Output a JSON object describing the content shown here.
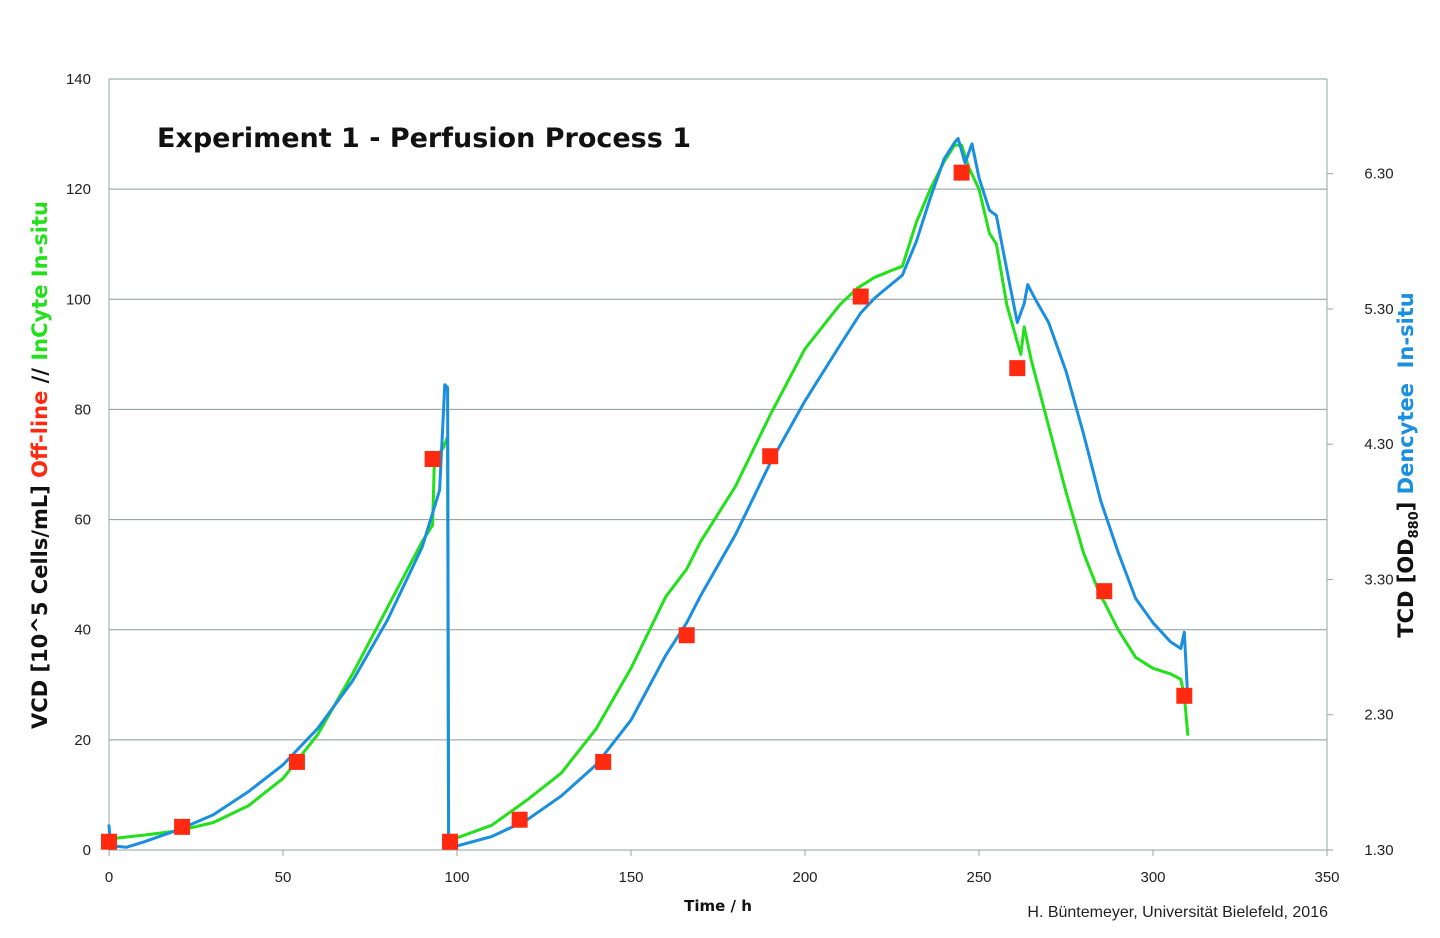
{
  "chart_data": {
    "type": "line",
    "title": "Experiment 1 - Perfusion Process 1",
    "xlabel": "Time / h",
    "ylabel": {
      "prefix": "VCD [10^5 Cells/mL] ",
      "offline": "Off-line",
      "separator": " // ",
      "incyte": "InCyte In-situ"
    },
    "y2label": {
      "prefix": "TCD [OD",
      "subscript": "880",
      "suffix": "] ",
      "dencytee": "Dencytee  In-situ"
    },
    "xlim": [
      0,
      350
    ],
    "ylim": [
      0,
      140
    ],
    "y2lim": [
      1.3,
      7.0
    ],
    "x_ticks": [
      "0",
      "50",
      "100",
      "150",
      "200",
      "250",
      "300",
      "350"
    ],
    "y_ticks": [
      "0",
      "20",
      "40",
      "60",
      "80",
      "100",
      "120",
      "140"
    ],
    "y2_ticks": [
      "1.30",
      "2.30",
      "3.30",
      "4.30",
      "5.30",
      "6.30"
    ],
    "grid": "horizontal",
    "credit": "H. Büntemeyer, Universität Bielefeld, 2016",
    "colors": {
      "incyte": "#22e01a",
      "dencytee": "#1a8fe0",
      "offline": "#ff2a10",
      "grid": "#8a9a9a",
      "axis": "#9aa5a5",
      "title": "#111111",
      "offline_label": "#ff2a10",
      "incyte_label": "#22e01a",
      "dencytee_label": "#1a8fe0"
    },
    "series": [
      {
        "name": "InCyte In-situ",
        "axis": "left",
        "x": [
          0,
          10,
          20,
          30,
          40,
          50,
          60,
          70,
          80,
          90,
          93,
          93.5,
          96,
          97.3,
          97.6,
          98,
          100,
          110,
          120,
          130,
          140,
          150,
          160,
          166,
          170,
          180,
          190,
          200,
          210,
          215,
          220,
          228,
          232,
          236,
          240,
          243,
          245,
          247,
          250,
          253,
          255,
          258,
          262,
          263,
          265,
          270,
          275,
          280,
          285,
          286,
          290,
          295,
          300,
          305,
          308,
          309,
          310
        ],
        "y": [
          2,
          2.7,
          3.5,
          5,
          8,
          13,
          21,
          32,
          44,
          56,
          59,
          71,
          73,
          75,
          1,
          1.5,
          2.2,
          4.5,
          9,
          14,
          22,
          33,
          46,
          51,
          56,
          66,
          79,
          91,
          99,
          102,
          104,
          106,
          114,
          120,
          125,
          128,
          128,
          124,
          120,
          112,
          110,
          99,
          90,
          95,
          89,
          77,
          65,
          54,
          46,
          45,
          40,
          35,
          33,
          32,
          31,
          28,
          21
        ]
      },
      {
        "name": "Dencytee  In-situ",
        "axis": "right",
        "x": [
          0,
          0.5,
          1,
          5,
          10,
          20,
          30,
          40,
          50,
          60,
          70,
          80,
          90,
          95,
          96.5,
          97.3,
          97.6,
          98.5,
          100,
          110,
          120,
          130,
          140,
          150,
          160,
          166,
          170,
          180,
          190,
          200,
          210,
          216,
          220,
          228,
          232,
          236,
          240,
          243,
          244,
          246,
          248,
          250,
          253,
          255,
          258,
          261,
          263,
          264,
          266,
          270,
          275,
          280,
          285,
          290,
          295,
          300,
          305,
          308,
          309,
          310
        ],
        "y": [
          1.48,
          1.31,
          1.33,
          1.32,
          1.36,
          1.45,
          1.56,
          1.73,
          1.93,
          2.2,
          2.55,
          3.0,
          3.54,
          3.96,
          4.74,
          4.72,
          1.34,
          1.32,
          1.33,
          1.4,
          1.52,
          1.7,
          1.93,
          2.26,
          2.74,
          2.98,
          3.18,
          3.63,
          4.16,
          4.62,
          5.03,
          5.27,
          5.38,
          5.55,
          5.8,
          6.12,
          6.41,
          6.53,
          6.56,
          6.38,
          6.52,
          6.27,
          6.03,
          5.99,
          5.59,
          5.2,
          5.34,
          5.48,
          5.38,
          5.2,
          4.84,
          4.38,
          3.88,
          3.5,
          3.16,
          2.98,
          2.84,
          2.79,
          2.91,
          2.42
        ]
      },
      {
        "name": "Off-line",
        "axis": "left",
        "type": "scatter",
        "x": [
          0,
          21,
          54,
          93,
          98,
          118,
          142,
          166,
          190,
          216,
          245,
          261,
          286,
          309
        ],
        "y": [
          1.5,
          4.2,
          16,
          71,
          1.5,
          5.5,
          16,
          39,
          71.5,
          100.5,
          123,
          87.5,
          47,
          28
        ]
      }
    ]
  }
}
